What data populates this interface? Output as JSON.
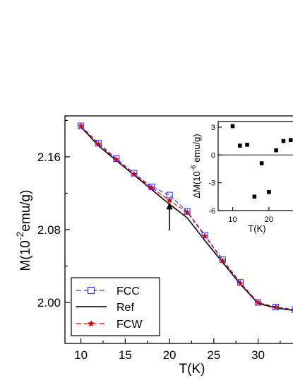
{
  "chart_data": [
    {
      "type": "line",
      "title": "",
      "xlabel": "T(K)",
      "ylabel": "M(10⁻²emu/g)",
      "ylabel_base": "M(10",
      "ylabel_exp": "-2",
      "ylabel_unit": "emu/g)",
      "xlim": [
        8.2,
        34.5
      ],
      "ylim": [
        1.955,
        2.205
      ],
      "x_ticks": [
        10,
        15,
        20,
        25,
        30
      ],
      "x_tick_labels": [
        "10",
        "15",
        "20",
        "25",
        "30"
      ],
      "y_ticks": [
        2.0,
        2.08,
        2.16
      ],
      "y_tick_labels": [
        "2.00",
        "2.08",
        "2.16"
      ],
      "legend_position": "bottom-left",
      "series": [
        {
          "name": "FCC",
          "color": "#3333ff",
          "marker": "open-square",
          "line_style": "dashed",
          "x": [
            10,
            12,
            14,
            16,
            18,
            20,
            22,
            24,
            26,
            28,
            30,
            32,
            34.2
          ],
          "y": [
            2.194,
            2.175,
            2.158,
            2.142,
            2.127,
            2.118,
            2.1,
            2.074,
            2.047,
            2.022,
            2.0,
            1.995,
            1.992
          ]
        },
        {
          "name": "Ref",
          "color": "#000000",
          "marker": "none",
          "line_style": "solid",
          "x": [
            10,
            12,
            14,
            16,
            18,
            20,
            22,
            24,
            26,
            28,
            30,
            32,
            34.2
          ],
          "y": [
            2.193,
            2.172,
            2.156,
            2.14,
            2.124,
            2.108,
            2.093,
            2.068,
            2.044,
            2.02,
            1.999,
            1.994,
            1.991
          ]
        },
        {
          "name": "FCW",
          "color": "#ff0000",
          "marker": "star",
          "line_style": "dashed",
          "x": [
            10,
            12,
            14,
            16,
            18,
            20,
            22,
            24,
            26,
            28,
            30,
            32,
            34.2
          ],
          "y": [
            2.194,
            2.174,
            2.157,
            2.141,
            2.126,
            2.112,
            2.099,
            2.073,
            2.046,
            2.021,
            2.0,
            1.995,
            1.992
          ]
        }
      ],
      "annotations": [
        {
          "type": "arrow",
          "x": 20,
          "y_from": 2.079,
          "y_to": 2.11
        }
      ]
    },
    {
      "type": "scatter",
      "title": "",
      "xlabel": "T(K)",
      "ylabel": "ΔM(10⁻⁶ emu/g)",
      "ylabel_base": "ΔM(10",
      "ylabel_exp": "-6",
      "ylabel_unit": " emu/g)",
      "xlim": [
        6,
        28
      ],
      "ylim": [
        -6,
        3.6
      ],
      "x_ticks": [
        10,
        20
      ],
      "x_tick_labels": [
        "10",
        "20"
      ],
      "y_ticks": [
        -6,
        -3,
        0,
        3
      ],
      "y_tick_labels": [
        "-6",
        "-3",
        "0",
        "3"
      ],
      "zero_line": true,
      "points": {
        "x": [
          10,
          12,
          14,
          16,
          18,
          20,
          22,
          24,
          26
        ],
        "y": [
          3.1,
          1.0,
          1.1,
          -4.5,
          -0.9,
          -4.0,
          0.5,
          1.5,
          1.6
        ]
      }
    }
  ],
  "legend": {
    "fcc_label": "FCC",
    "ref_label": "Ref",
    "fcw_label": "FCW"
  }
}
